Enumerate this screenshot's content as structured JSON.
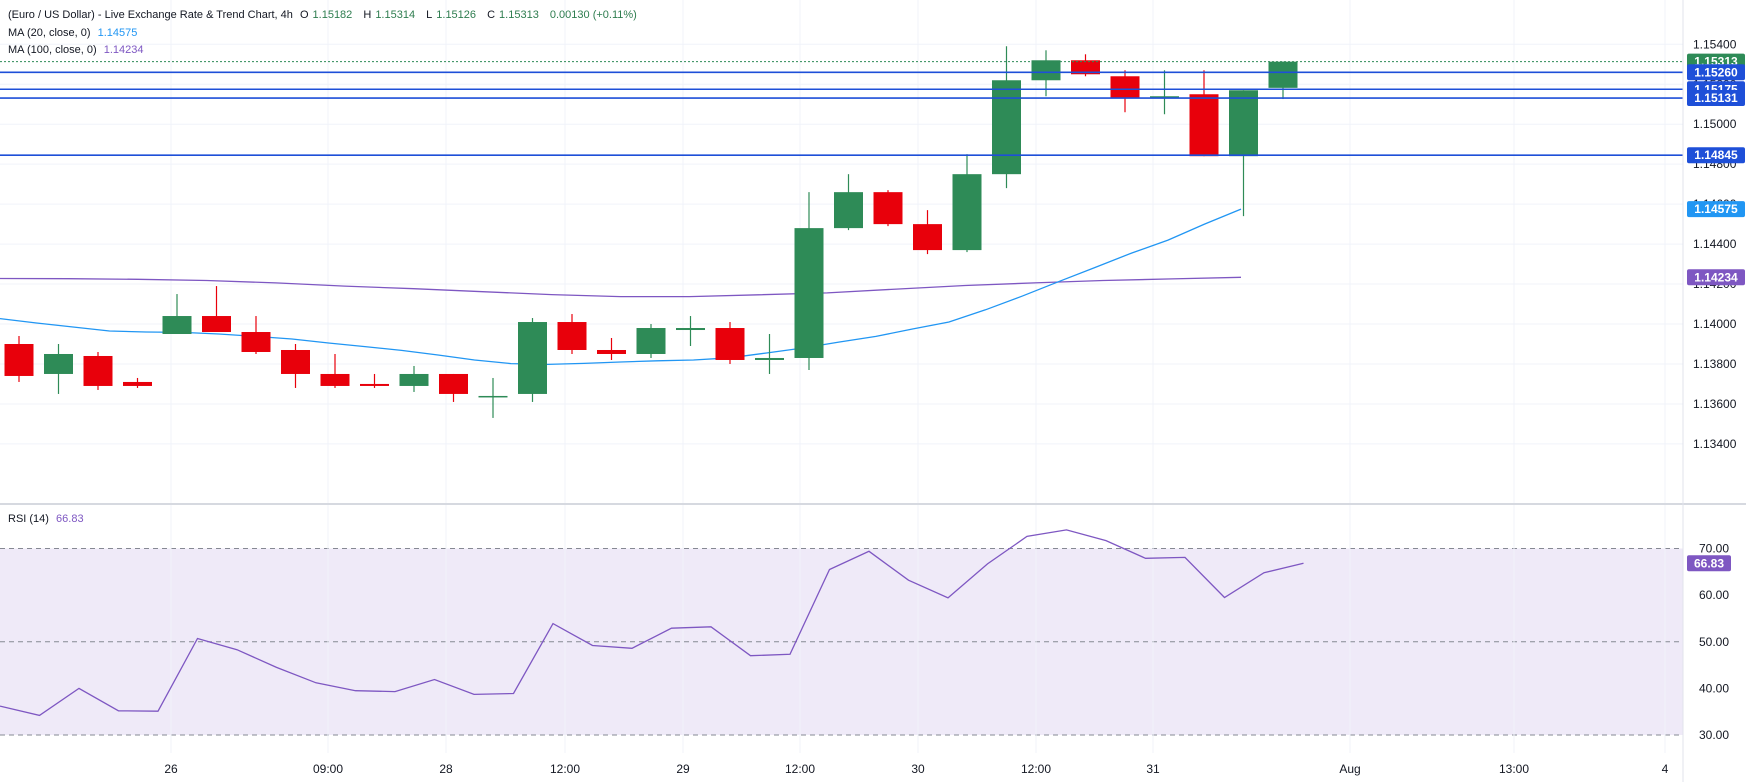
{
  "legend": {
    "title": "(Euro / US Dollar) - Live Exchange Rate & Trend Chart, 4h",
    "open_label": "O",
    "open": "1.15182",
    "high_label": "H",
    "high": "1.15314",
    "low_label": "L",
    "low": "1.15126",
    "close_label": "C",
    "close": "1.15313",
    "change": "0.00130 (+0.11%)",
    "ma20_label": "MA (20, close, 0)",
    "ma20_value": "1.14575",
    "ma100_label": "MA (100, close, 0)",
    "ma100_value": "1.14234",
    "rsi_label": "RSI (14)",
    "rsi_value": "66.83"
  },
  "colors": {
    "up": "#2e8b57",
    "down": "#e8000b",
    "ma20": "#2196f3",
    "ma100": "#7e57c2",
    "rsi": "#7e57c2",
    "level_line": "#1e4fd8",
    "rsi_band": "#efeaf8"
  },
  "chart_data": [
    {
      "type": "candlestick",
      "title": "(Euro / US Dollar) - Live Exchange Rate & Trend Chart, 4h",
      "ylim": [
        1.133,
        1.1555
      ],
      "y_ticks": [
        "1.13400",
        "1.13600",
        "1.13800",
        "1.14000",
        "1.14200",
        "1.14400",
        "1.14600",
        "1.14800",
        "1.15000",
        "1.15200",
        "1.15400"
      ],
      "x_tick_labels": [
        "26",
        "09:00",
        "28",
        "12:00",
        "29",
        "12:00",
        "30",
        "12:00",
        "31",
        "Aug",
        "13:00",
        "4"
      ],
      "candles": [
        {
          "o": 1.139,
          "h": 1.1394,
          "l": 1.1371,
          "c": 1.1374
        },
        {
          "o": 1.1375,
          "h": 1.139,
          "l": 1.1365,
          "c": 1.1385
        },
        {
          "o": 1.1384,
          "h": 1.1386,
          "l": 1.1367,
          "c": 1.1369
        },
        {
          "o": 1.1371,
          "h": 1.1373,
          "l": 1.1368,
          "c": 1.1369
        },
        {
          "o": 1.1395,
          "h": 1.1415,
          "l": 1.1395,
          "c": 1.1404
        },
        {
          "o": 1.1404,
          "h": 1.1419,
          "l": 1.1396,
          "c": 1.1396
        },
        {
          "o": 1.1396,
          "h": 1.1404,
          "l": 1.1385,
          "c": 1.1386
        },
        {
          "o": 1.1387,
          "h": 1.139,
          "l": 1.1368,
          "c": 1.1375
        },
        {
          "o": 1.1375,
          "h": 1.1385,
          "l": 1.1368,
          "c": 1.1369
        },
        {
          "o": 1.137,
          "h": 1.1375,
          "l": 1.1368,
          "c": 1.1369
        },
        {
          "o": 1.1369,
          "h": 1.1379,
          "l": 1.1366,
          "c": 1.1375
        },
        {
          "o": 1.1375,
          "h": 1.1375,
          "l": 1.1361,
          "c": 1.1365
        },
        {
          "o": 1.1364,
          "h": 1.1373,
          "l": 1.1353,
          "c": 1.1364
        },
        {
          "o": 1.1365,
          "h": 1.1403,
          "l": 1.1361,
          "c": 1.1401
        },
        {
          "o": 1.1401,
          "h": 1.1405,
          "l": 1.1385,
          "c": 1.1387
        },
        {
          "o": 1.1387,
          "h": 1.1393,
          "l": 1.1382,
          "c": 1.1385
        },
        {
          "o": 1.1385,
          "h": 1.14,
          "l": 1.1383,
          "c": 1.1398
        },
        {
          "o": 1.1397,
          "h": 1.1404,
          "l": 1.1389,
          "c": 1.1398
        },
        {
          "o": 1.1398,
          "h": 1.1401,
          "l": 1.138,
          "c": 1.1382
        },
        {
          "o": 1.1382,
          "h": 1.1395,
          "l": 1.1375,
          "c": 1.1383
        },
        {
          "o": 1.1383,
          "h": 1.1466,
          "l": 1.1377,
          "c": 1.1448
        },
        {
          "o": 1.1448,
          "h": 1.1475,
          "l": 1.1447,
          "c": 1.1466
        },
        {
          "o": 1.1466,
          "h": 1.1467,
          "l": 1.1449,
          "c": 1.145
        },
        {
          "o": 1.145,
          "h": 1.1457,
          "l": 1.1435,
          "c": 1.1437
        },
        {
          "o": 1.1437,
          "h": 1.1485,
          "l": 1.1436,
          "c": 1.1475
        },
        {
          "o": 1.1475,
          "h": 1.1539,
          "l": 1.1468,
          "c": 1.1522
        },
        {
          "o": 1.1522,
          "h": 1.1537,
          "l": 1.1514,
          "c": 1.1532
        },
        {
          "o": 1.1532,
          "h": 1.1535,
          "l": 1.1524,
          "c": 1.1525
        },
        {
          "o": 1.1524,
          "h": 1.1527,
          "l": 1.1506,
          "c": 1.1513
        },
        {
          "o": 1.1513,
          "h": 1.1527,
          "l": 1.1505,
          "c": 1.1514
        },
        {
          "o": 1.1515,
          "h": 1.1527,
          "l": 1.1484,
          "c": 1.1484
        },
        {
          "o": 1.1484,
          "h": 1.1517,
          "l": 1.1454,
          "c": 1.1517
        },
        {
          "o": 1.15182,
          "h": 1.15314,
          "l": 1.15126,
          "c": 1.15313
        }
      ],
      "series": [
        {
          "name": "MA (20, close, 0)",
          "values": [
            1.14027,
            1.14005,
            1.13985,
            1.13965,
            1.1396,
            1.13958,
            1.1395,
            1.13938,
            1.13925,
            1.13905,
            1.13887,
            1.13868,
            1.13845,
            1.1382,
            1.13802,
            1.13798,
            1.13803,
            1.1381,
            1.13816,
            1.1382,
            1.13831,
            1.13855,
            1.1388,
            1.1391,
            1.13938,
            1.13975,
            1.1401,
            1.14071,
            1.14139,
            1.14212,
            1.14283,
            1.14355,
            1.1442,
            1.145,
            1.14575
          ]
        },
        {
          "name": "MA (100, close, 0)",
          "values": [
            1.14228,
            1.14227,
            1.14224,
            1.14218,
            1.14206,
            1.1419,
            1.14177,
            1.14162,
            1.14147,
            1.14137,
            1.14137,
            1.14146,
            1.14156,
            1.14175,
            1.14193,
            1.14206,
            1.14218,
            1.14226,
            1.14234
          ]
        }
      ],
      "horizontal_levels": [
        "1.15313",
        "1.15260",
        "1.15175",
        "1.15131",
        "1.14845"
      ],
      "price_labels": [
        {
          "text": "1.15313",
          "kind": "last"
        },
        {
          "text": "1.15260",
          "kind": "level"
        },
        {
          "text": "1.15175",
          "kind": "level"
        },
        {
          "text": "1.15131",
          "kind": "level"
        },
        {
          "text": "1.14845",
          "kind": "level"
        },
        {
          "text": "1.14575",
          "kind": "ma20"
        },
        {
          "text": "1.14234",
          "kind": "ma100"
        }
      ]
    },
    {
      "type": "line",
      "title": "RSI (14)",
      "ylim": [
        27,
        75
      ],
      "y_ticks": [
        "30.00",
        "40.00",
        "50.00",
        "60.00",
        "70.00"
      ],
      "band": [
        30,
        70
      ],
      "series": [
        {
          "name": "RSI (14)",
          "values": [
            36.2,
            34.2,
            40.0,
            35.2,
            35.1,
            50.7,
            48.3,
            44.5,
            41.2,
            39.5,
            39.3,
            41.9,
            38.7,
            38.9,
            53.9,
            49.2,
            48.6,
            52.9,
            53.2,
            47.0,
            47.3,
            65.5,
            69.4,
            63.2,
            59.4,
            66.7,
            72.6,
            74.0,
            71.7,
            67.9,
            68.1,
            59.5,
            64.8,
            66.83
          ]
        }
      ],
      "last_value_label": "66.83"
    }
  ]
}
